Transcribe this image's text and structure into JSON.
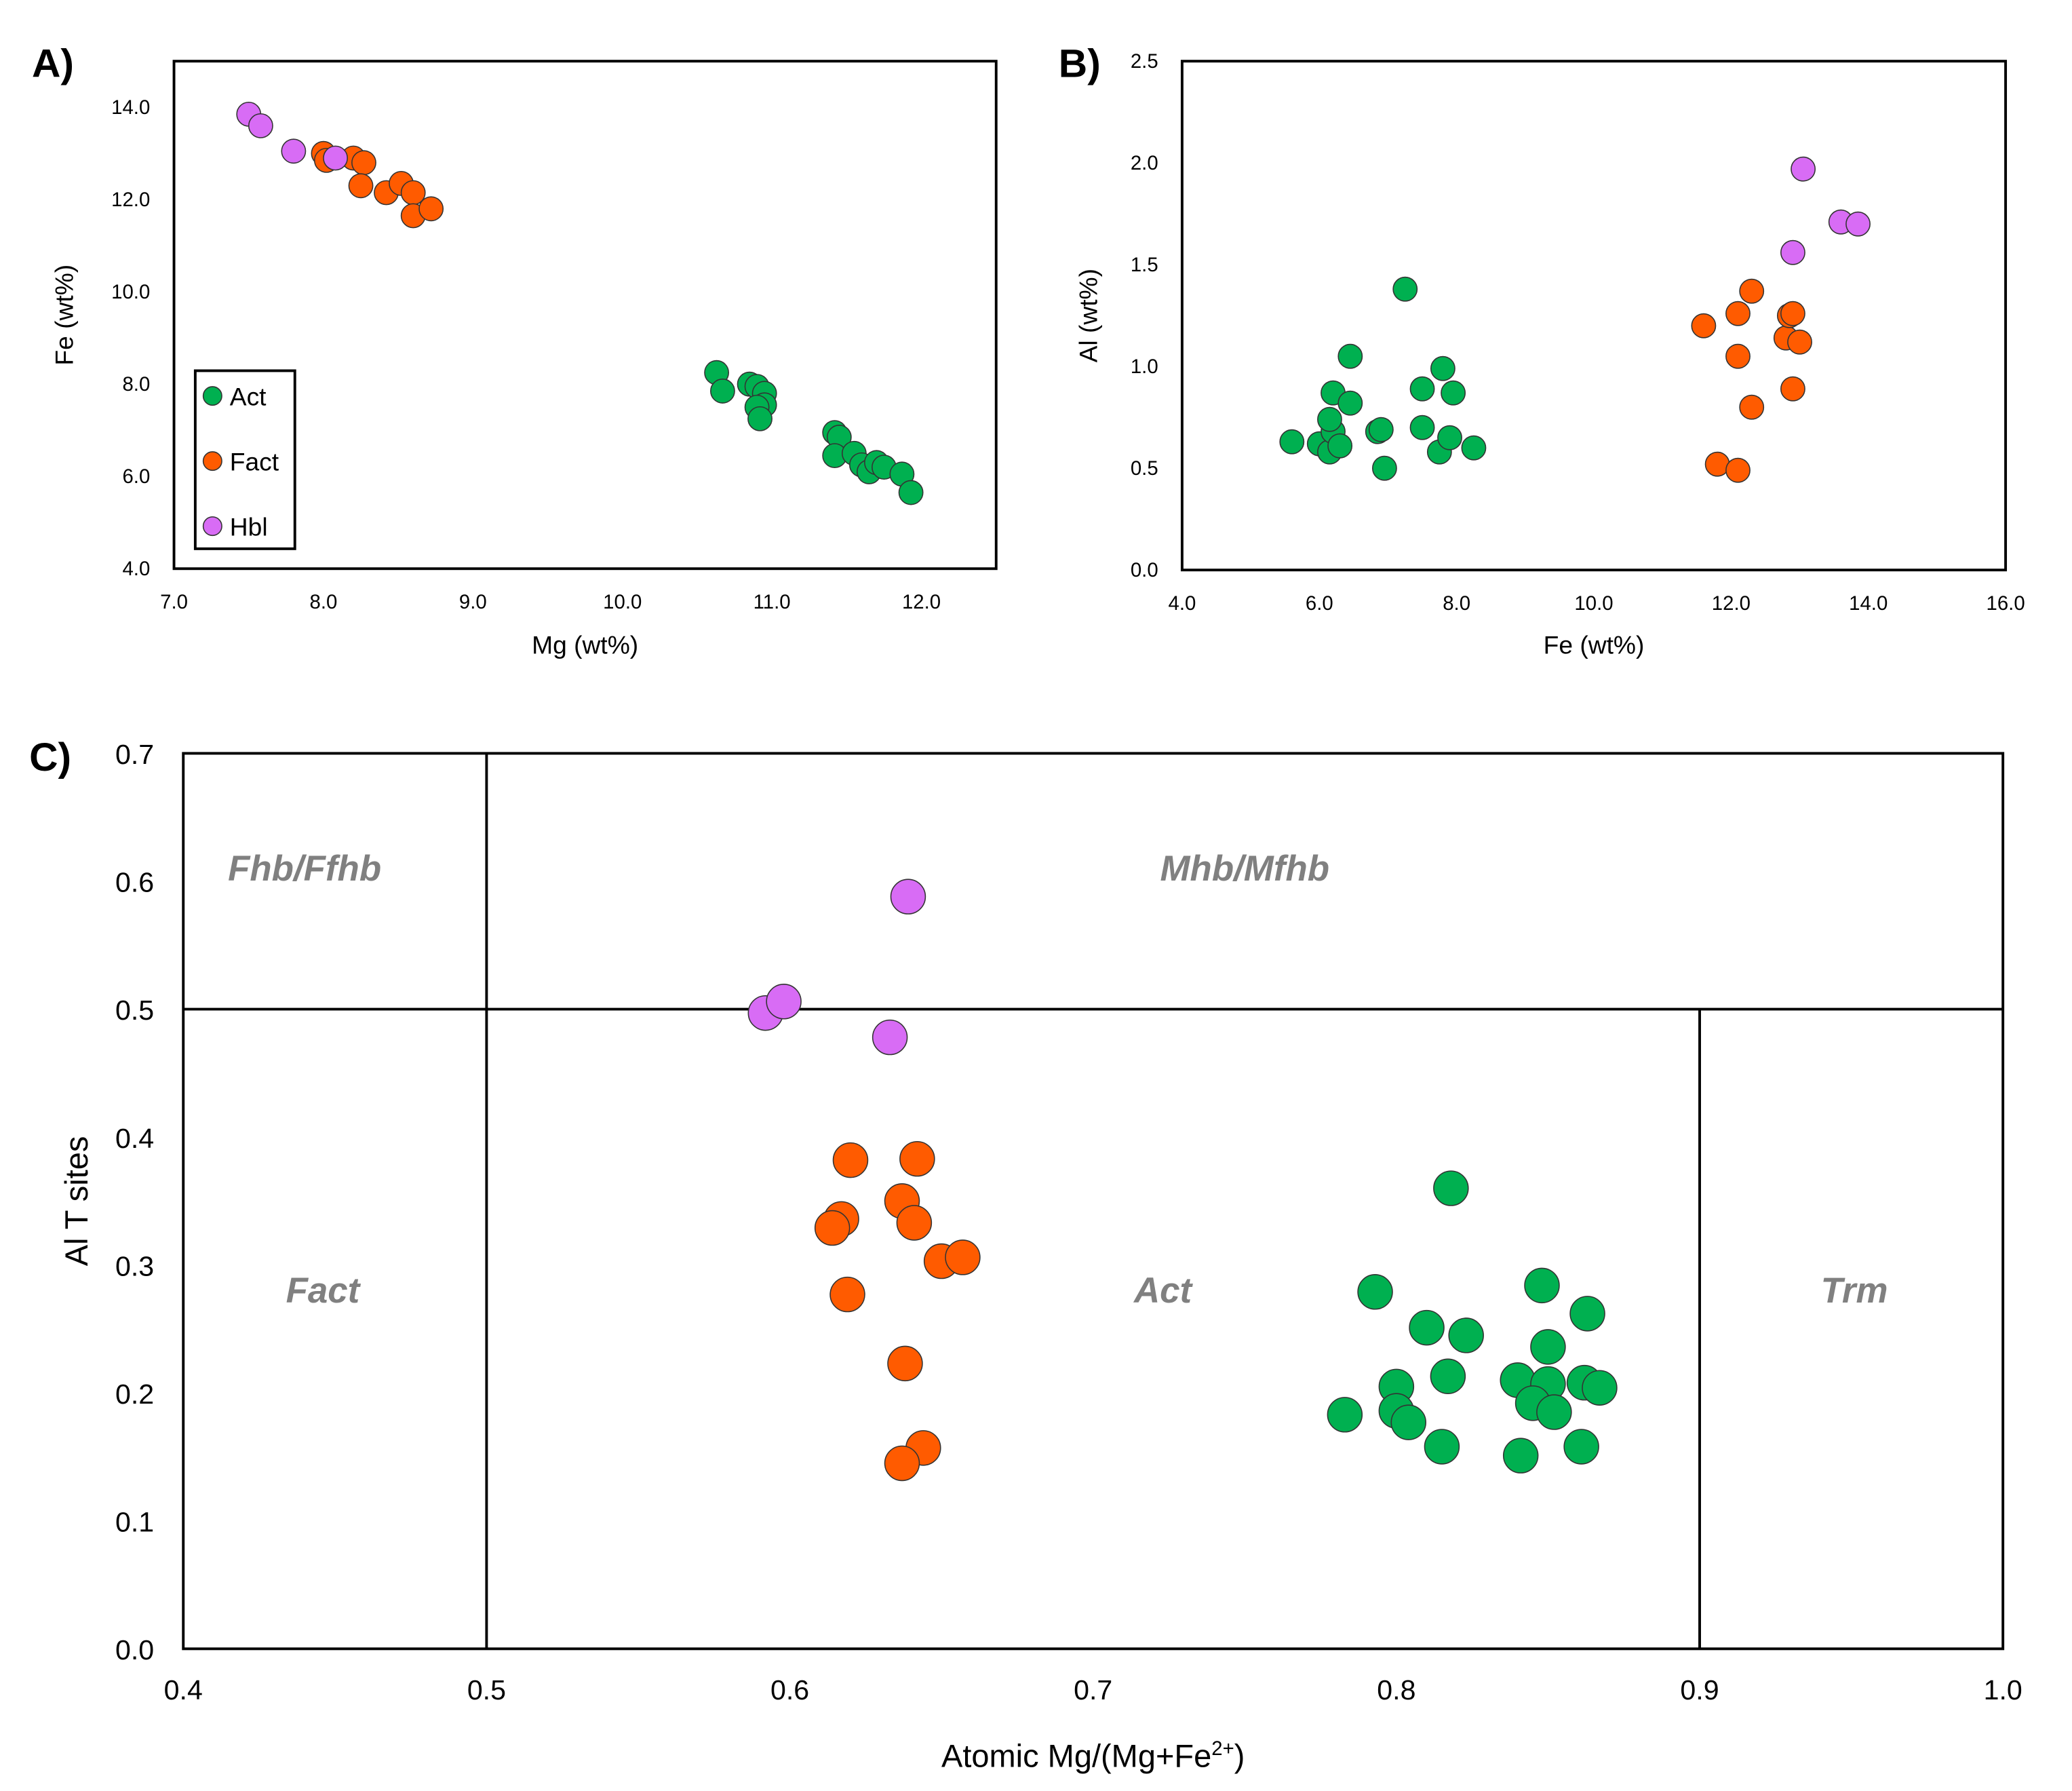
{
  "colors": {
    "Act": "#00b050",
    "Fact": "#ff5b00",
    "Hbl": "#d86cf5"
  },
  "chart_data": [
    {
      "type": "scatter",
      "panel_label": "A)",
      "xlabel": "Mg (wt%)",
      "ylabel": "Fe (wt%)",
      "xlim": [
        7.0,
        12.5
      ],
      "ylim": [
        4.0,
        15.0
      ],
      "xticks": [
        "7.0",
        "8.0",
        "9.0",
        "10.0",
        "11.0",
        "12.0"
      ],
      "yticks": [
        "4.0",
        "6.0",
        "8.0",
        "10.0",
        "12.0",
        "14.0"
      ],
      "legend": {
        "placement": "bottom-left",
        "entries": [
          "Act",
          "Fact",
          "Hbl"
        ]
      },
      "series": [
        {
          "name": "Act",
          "points": [
            [
              10.63,
              8.25
            ],
            [
              10.67,
              7.85
            ],
            [
              10.85,
              8.0
            ],
            [
              10.9,
              7.95
            ],
            [
              10.95,
              7.8
            ],
            [
              10.95,
              7.55
            ],
            [
              10.9,
              7.5
            ],
            [
              10.92,
              7.25
            ],
            [
              11.42,
              6.95
            ],
            [
              11.45,
              6.85
            ],
            [
              11.42,
              6.45
            ],
            [
              11.55,
              6.5
            ],
            [
              11.6,
              6.25
            ],
            [
              11.65,
              6.1
            ],
            [
              11.7,
              6.3
            ],
            [
              11.75,
              6.2
            ],
            [
              11.87,
              6.05
            ],
            [
              11.93,
              5.65
            ]
          ]
        },
        {
          "name": "Fact",
          "points": [
            [
              8.0,
              13.0
            ],
            [
              8.02,
              12.85
            ],
            [
              8.2,
              12.9
            ],
            [
              8.27,
              12.8
            ],
            [
              8.25,
              12.3
            ],
            [
              8.42,
              12.15
            ],
            [
              8.52,
              12.35
            ],
            [
              8.6,
              12.15
            ],
            [
              8.6,
              11.65
            ],
            [
              8.72,
              11.8
            ]
          ]
        },
        {
          "name": "Hbl",
          "points": [
            [
              7.5,
              13.85
            ],
            [
              7.58,
              13.6
            ],
            [
              7.8,
              13.05
            ],
            [
              8.08,
              12.9
            ]
          ]
        }
      ]
    },
    {
      "type": "scatter",
      "panel_label": "B)",
      "xlabel": "Fe (wt%)",
      "ylabel": "Al (wt%)",
      "xlim": [
        4.0,
        16.0
      ],
      "ylim": [
        0.0,
        2.5
      ],
      "xticks": [
        "4.0",
        "6.0",
        "8.0",
        "10.0",
        "12.0",
        "14.0",
        "16.0"
      ],
      "yticks": [
        "0.0",
        "0.5",
        "1.0",
        "1.5",
        "2.0",
        "2.5"
      ],
      "series": [
        {
          "name": "Act",
          "points": [
            [
              5.6,
              0.63
            ],
            [
              6.0,
              0.62
            ],
            [
              6.15,
              0.58
            ],
            [
              6.2,
              0.68
            ],
            [
              6.15,
              0.74
            ],
            [
              6.2,
              0.87
            ],
            [
              6.3,
              0.61
            ],
            [
              6.45,
              1.05
            ],
            [
              6.45,
              0.82
            ],
            [
              6.85,
              0.68
            ],
            [
              6.9,
              0.69
            ],
            [
              6.95,
              0.5
            ],
            [
              7.25,
              1.38
            ],
            [
              7.5,
              0.89
            ],
            [
              7.5,
              0.7
            ],
            [
              7.75,
              0.58
            ],
            [
              7.8,
              0.99
            ],
            [
              7.9,
              0.65
            ],
            [
              7.95,
              0.87
            ],
            [
              8.25,
              0.6
            ]
          ]
        },
        {
          "name": "Fact",
          "points": [
            [
              11.6,
              1.2
            ],
            [
              11.8,
              0.52
            ],
            [
              12.1,
              1.26
            ],
            [
              12.1,
              1.05
            ],
            [
              12.1,
              0.49
            ],
            [
              12.3,
              1.37
            ],
            [
              12.3,
              0.8
            ],
            [
              12.8,
              1.14
            ],
            [
              12.85,
              1.25
            ],
            [
              12.9,
              1.26
            ],
            [
              12.9,
              0.89
            ],
            [
              13.0,
              1.12
            ]
          ]
        },
        {
          "name": "Hbl",
          "points": [
            [
              12.9,
              1.56
            ],
            [
              13.05,
              1.97
            ],
            [
              13.6,
              1.71
            ],
            [
              13.85,
              1.7
            ]
          ]
        }
      ]
    },
    {
      "type": "scatter",
      "panel_label": "C)",
      "xlabel": "Atomic Mg/(Mg+Fe",
      "xlabel_sup": "2+",
      "xlabel_end": ")",
      "ylabel": "Al T sites",
      "xlim": [
        0.4,
        1.0
      ],
      "ylim": [
        0.0,
        0.7
      ],
      "xticks": [
        "0.4",
        "0.5",
        "0.6",
        "0.7",
        "0.8",
        "0.9",
        "1.0"
      ],
      "yticks": [
        "0.0",
        "0.1",
        "0.2",
        "0.3",
        "0.4",
        "0.5",
        "0.6",
        "0.7"
      ],
      "boundaries": [
        {
          "x": [
            0.5,
            0.5
          ],
          "y": [
            0.0,
            0.7
          ]
        },
        {
          "x": [
            0.4,
            1.0
          ],
          "y": [
            0.5,
            0.5
          ]
        },
        {
          "x": [
            0.9,
            0.9
          ],
          "y": [
            0.0,
            0.5
          ]
        }
      ],
      "regions": [
        {
          "label": "Fhb/Ffhb",
          "x": 0.44,
          "y": 0.61
        },
        {
          "label": "Mhb/Mfhb",
          "x": 0.75,
          "y": 0.61
        },
        {
          "label": "Fact",
          "x": 0.446,
          "y": 0.28
        },
        {
          "label": "Act",
          "x": 0.723,
          "y": 0.28
        },
        {
          "label": "Trm",
          "x": 0.951,
          "y": 0.28
        }
      ],
      "series": [
        {
          "name": "Act",
          "points": [
            [
              0.818,
              0.36
            ],
            [
              0.793,
              0.279
            ],
            [
              0.848,
              0.284
            ],
            [
              0.863,
              0.262
            ],
            [
              0.81,
              0.251
            ],
            [
              0.823,
              0.245
            ],
            [
              0.85,
              0.236
            ],
            [
              0.817,
              0.213
            ],
            [
              0.8,
              0.205
            ],
            [
              0.84,
              0.21
            ],
            [
              0.85,
              0.207
            ],
            [
              0.862,
              0.208
            ],
            [
              0.867,
              0.204
            ],
            [
              0.845,
              0.192
            ],
            [
              0.852,
              0.185
            ],
            [
              0.783,
              0.183
            ],
            [
              0.8,
              0.186
            ],
            [
              0.804,
              0.177
            ],
            [
              0.815,
              0.158
            ],
            [
              0.841,
              0.151
            ],
            [
              0.861,
              0.158
            ]
          ]
        },
        {
          "name": "Fact",
          "points": [
            [
              0.62,
              0.382
            ],
            [
              0.642,
              0.383
            ],
            [
              0.637,
              0.35
            ],
            [
              0.641,
              0.333
            ],
            [
              0.617,
              0.336
            ],
            [
              0.614,
              0.329
            ],
            [
              0.65,
              0.303
            ],
            [
              0.657,
              0.306
            ],
            [
              0.619,
              0.277
            ],
            [
              0.638,
              0.223
            ],
            [
              0.644,
              0.157
            ],
            [
              0.637,
              0.145
            ]
          ]
        },
        {
          "name": "Hbl",
          "points": [
            [
              0.592,
              0.497
            ],
            [
              0.598,
              0.506
            ],
            [
              0.633,
              0.478
            ],
            [
              0.639,
              0.588
            ]
          ]
        }
      ]
    }
  ]
}
